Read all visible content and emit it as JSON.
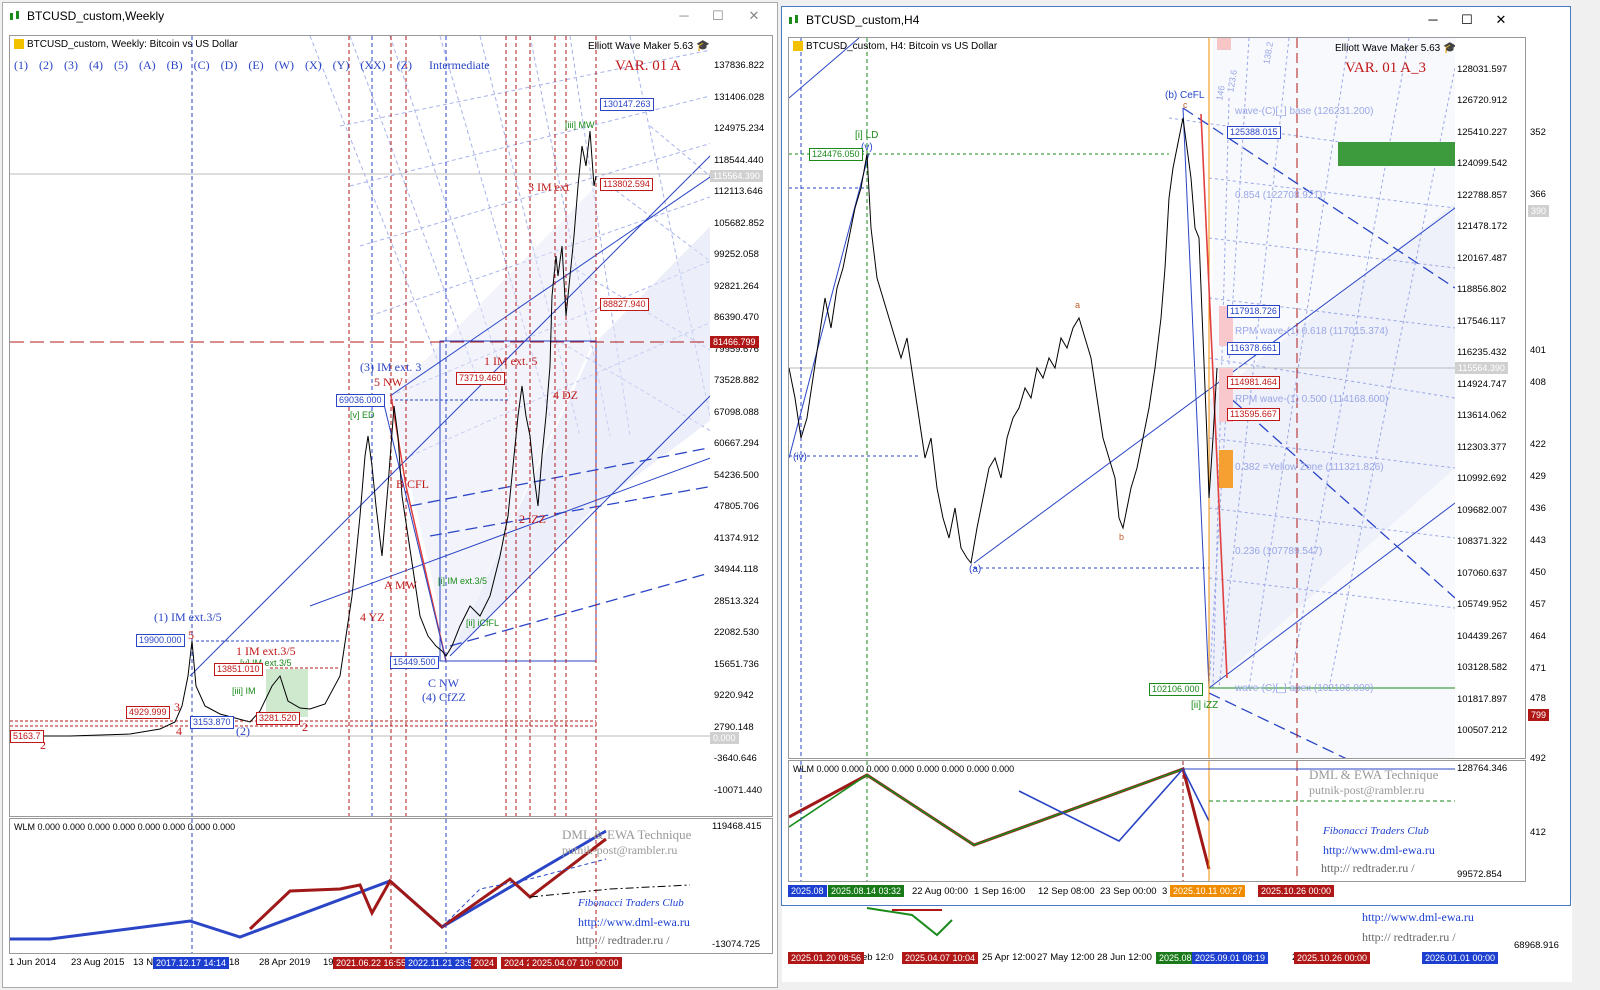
{
  "left_window": {
    "title": "BTCUSD_custom,Weekly",
    "header": "BTCUSD_custom, Weekly:  Bitcoin vs US Dollar",
    "plugin": "Elliott Wave Maker 5.63",
    "variant": "VAR. 01 A",
    "degree_buttons": [
      "(1)",
      "(2)",
      "(3)",
      "(4)",
      "(5)",
      "(A)",
      "(B)",
      "(C)",
      "(D)",
      "(E)",
      "(W)",
      "(X)",
      "(Y)",
      "(XX)",
      "(Z)"
    ],
    "degree_label": "Intermediate",
    "price_axis": [
      "137836.822",
      "131406.028",
      "124975.234",
      "118544.440",
      "112113.646",
      "105682.852",
      "99252.058",
      "92821.264",
      "86390.470",
      "79959.676",
      "73528.882",
      "67098.088",
      "60667.294",
      "54236.500",
      "47805.706",
      "41374.912",
      "34944.118",
      "28513.324",
      "22082.530",
      "15651.736",
      "9220.942",
      "2790.148",
      "-3640.646",
      "-10071.440"
    ],
    "price_labels": {
      "current": "115564.390",
      "level_81466": "81466.799",
      "zero": "0.000",
      "p130147": "130147.263",
      "p113802": "113802.594",
      "p88827": "88827.940",
      "p73719": "73719.460",
      "p69036": "69036.000",
      "p19900": "19900.000",
      "p15449": "15449.500",
      "p13851": "13851.010",
      "p4929": "4929.999",
      "p3153": "3153.870",
      "p3281": "3281.520",
      "p_left": "5163.7"
    },
    "wave_labels": {
      "imext35_1": "(1) IM ext.3/5",
      "imext3_3": "(3) IM ext. 3",
      "nw5": "5 NW",
      "bcfl": "B CFL",
      "anw": "A MW",
      "yz4": "4 YZ",
      "cnw": "C NW",
      "cfzz4": "(4) CfZZ",
      "im1_ext35": "1 IM ext.3/5",
      "im_ext35_green": "[v] IM ext.3/5",
      "iii_im": "[iii] IM",
      "im1_ext5": "1 IM ext. 5",
      "im3": "3 IM ext",
      "dz4": "4 DZ",
      "izz2": "2 iZZ",
      "iii_mw": "[iii] MW",
      "i_im_ext": "[i] IM ext.3/5",
      "ii_cfl": "[ii] iCfFL",
      "v_ed": "[v] ED",
      "n2": "2",
      "n3": "3",
      "n4": "4",
      "n5": "5",
      "n2b": "2",
      "n2c": "(2)"
    },
    "time_axis": [
      "1 Jun 2014",
      "23 Aug 2015",
      "13 N",
      "18",
      "28 Apr 2019",
      "19"
    ],
    "time_boxes": [
      {
        "text": "2017.12.17 14:14",
        "color": "#1c3fd0"
      },
      {
        "text": "2021.06.22 16:55",
        "color": "#b01818"
      },
      {
        "text": "2022.11.21 23:5",
        "color": "#1c3fd0"
      },
      {
        "text": "2024",
        "color": "#b01818"
      },
      {
        "text": "2024 2",
        "color": "#b01818"
      },
      {
        "text": "2025.04.07 10:04",
        "color": "#b01818"
      },
      {
        "text": "00:00",
        "color": "#b01818"
      }
    ],
    "indicator": {
      "header": "WLM 0.000 0.000 0.000 0.000 0.000 0.000 0.000 0.000",
      "axis": [
        "119468.415",
        "-13074.725"
      ],
      "watermark1": "DML & EWA Technique",
      "watermark2": "putnik-post@rambler.ru",
      "club": "Fibonacci    Traders    Club",
      "url1": "http://www.dml-ewa.ru",
      "url2": "http://  redtrader.ru  /"
    }
  },
  "right_window": {
    "title": "BTCUSD_custom,H4",
    "header": "BTCUSD_custom, H4:  Bitcoin vs US Dollar",
    "plugin": "Elliott Wave Maker 5.63",
    "variant": "VAR. 01 A_3",
    "price_axis": [
      "128031.597",
      "126720.912",
      "125410.227",
      "124099.542",
      "122788.857",
      "121478.172",
      "120167.487",
      "118856.802",
      "117546.117",
      "116235.432",
      "114924.747",
      "113614.062",
      "112303.377",
      "110992.692",
      "109682.007",
      "108371.322",
      "107060.637",
      "105749.952",
      "104439.267",
      "103128.582",
      "101817.897",
      "100507.212"
    ],
    "edge_axis": [
      "352",
      "366",
      "390",
      "401",
      "408",
      "422",
      "429",
      "436",
      "443",
      "450",
      "457",
      "464",
      "471",
      "478",
      "492",
      "412"
    ],
    "price_labels": {
      "current": "115564.390",
      "p124476": "124476.050",
      "p125388": "125388.015",
      "p117918": "117918.726",
      "p116378": "116378.661",
      "p114981": "114981.464",
      "p113595": "113595.667",
      "p102106": "102106.000",
      "edge799": "799",
      "edge390": "390"
    },
    "fib_labels": {
      "base": "wave-(C)[_] base (126231.200)",
      "f854": "0.854 (122708.921)",
      "rpm618": "RPM wave-(1) 0.618 (117015.374)",
      "rpm500": "RPM wave-(1) 0.500 (114168.600)",
      "yellow": "0.382 =Yellow Zone (111321.826)",
      "f236": "0.236 (107789.547)",
      "apex": "wave-(C)[_] apex (102106.000)"
    },
    "wave_labels": {
      "ild": "[i] LD",
      "v": "(v)",
      "cefl": "(b) CeFL",
      "a_small": "a",
      "b_small": "b",
      "a_paren": "(a)",
      "iv": "(iv)",
      "iizz": "[ii] iZZ",
      "c": "c"
    },
    "fan_labels": [
      "138.2",
      "146",
      "123.6"
    ],
    "time_axis": [
      "22 Aug 00:00",
      "1 Sep 16:00",
      "12 Sep 08:00",
      "23 Sep 00:00",
      "3"
    ],
    "time_boxes": [
      {
        "text": "2025.08",
        "color": "#1c3fd0"
      },
      {
        "text": "2025.08.14 03:32",
        "color": "#1a7a1a"
      },
      {
        "text": "2025.10.11 00:27",
        "color": "#f08c00"
      },
      {
        "text": "2025.10.26 00:00",
        "color": "#b01818"
      }
    ],
    "indicator": {
      "header": "WLM 0.000 0.000 0.000 0.000 0.000 0.000 0.000 0.000",
      "axis": [
        "128764.346",
        "99572.854"
      ],
      "watermark1": "DML & EWA Technique",
      "watermark2": "putnik-post@rambler.ru",
      "club": "Fibonacci    Traders    Club",
      "url1": "http://www.dml-ewa.ru",
      "url2": "http://  redtrader.ru  /"
    }
  },
  "background_window": {
    "url1": "http://www.dml-ewa.ru",
    "url2": "http://  redtrader.ru  /",
    "axis_value": "68968.916",
    "time_axis": [
      "eb 12:0",
      "25 Apr 12:00",
      "27 May 12:00",
      "28 Jun 12:00",
      "2"
    ],
    "time_boxes": [
      {
        "text": "2025.01.20 08:56",
        "color": "#b01818"
      },
      {
        "text": "2025.04.07 10:04",
        "color": "#b01818"
      },
      {
        "text": "2025.08",
        "color": "#1a7a1a"
      },
      {
        "text": "2025.09.01 08:19",
        "color": "#1c3fd0"
      },
      {
        "text": "2025.10.26 00:00",
        "color": "#b01818"
      },
      {
        "text": "2026.01.01 00:00",
        "color": "#1c3fd0"
      }
    ]
  },
  "colors": {
    "blue": "#1c3fd0",
    "red": "#c01818",
    "green": "#1a8a1a",
    "orange": "#f08c00",
    "grid": "#9aa7e6"
  }
}
